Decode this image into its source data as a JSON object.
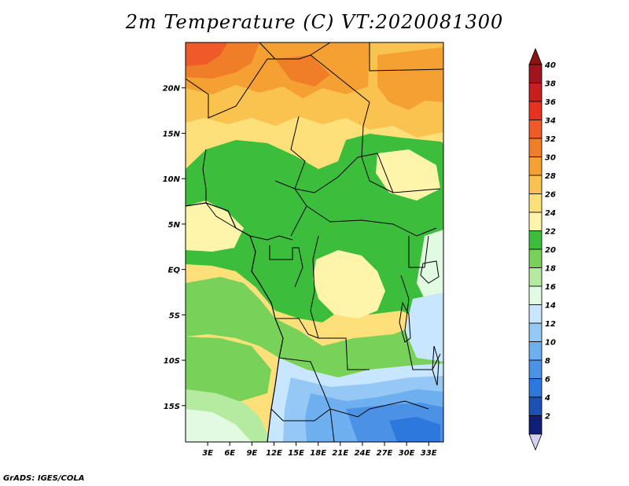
{
  "title": "2m Temperature (C) VT:2020081300",
  "credit": "GrADS: IGES/COLA",
  "map": {
    "lat_range": [
      -19,
      25
    ],
    "lon_range": [
      0,
      35
    ],
    "lat_ticks": [
      {
        "value": 20,
        "label": "20N"
      },
      {
        "value": 15,
        "label": "15N"
      },
      {
        "value": 10,
        "label": "10N"
      },
      {
        "value": 5,
        "label": "5N"
      },
      {
        "value": 0,
        "label": "EQ"
      },
      {
        "value": -5,
        "label": "5S"
      },
      {
        "value": -10,
        "label": "10S"
      },
      {
        "value": -15,
        "label": "15S"
      }
    ],
    "lon_ticks": [
      {
        "value": 3,
        "label": "3E"
      },
      {
        "value": 6,
        "label": "6E"
      },
      {
        "value": 9,
        "label": "9E"
      },
      {
        "value": 12,
        "label": "12E"
      },
      {
        "value": 15,
        "label": "15E"
      },
      {
        "value": 18,
        "label": "18E"
      },
      {
        "value": 21,
        "label": "21E"
      },
      {
        "value": 24,
        "label": "24E"
      },
      {
        "value": 27,
        "label": "27E"
      },
      {
        "value": 30,
        "label": "30E"
      },
      {
        "value": 33,
        "label": "33E"
      }
    ]
  },
  "colorbar": {
    "levels": [
      {
        "label": "40",
        "color": "#a0141e"
      },
      {
        "label": "38",
        "color": "#c81e1e"
      },
      {
        "label": "36",
        "color": "#e6321e"
      },
      {
        "label": "34",
        "color": "#f05a28"
      },
      {
        "label": "32",
        "color": "#f07d28"
      },
      {
        "label": "30",
        "color": "#f5a032"
      },
      {
        "label": "28",
        "color": "#fac350"
      },
      {
        "label": "26",
        "color": "#fde07a"
      },
      {
        "label": "24",
        "color": "#fff5aa"
      },
      {
        "label": "22",
        "color": "#3cbe3c"
      },
      {
        "label": "20",
        "color": "#78d25a"
      },
      {
        "label": "18",
        "color": "#b4eba0"
      },
      {
        "label": "16",
        "color": "#e1fae1"
      },
      {
        "label": "14",
        "color": "#c8e6ff"
      },
      {
        "label": "12",
        "color": "#96c8f5"
      },
      {
        "label": "10",
        "color": "#6eaff0"
      },
      {
        "label": "8",
        "color": "#4b91e6"
      },
      {
        "label": "6",
        "color": "#2d78dc"
      },
      {
        "label": "4",
        "color": "#1e50b4"
      },
      {
        "label": "2",
        "color": "#0f1e78"
      }
    ],
    "top_arrow_color": "#8c1414",
    "bottom_arrow_color": "#d2d2f0"
  }
}
